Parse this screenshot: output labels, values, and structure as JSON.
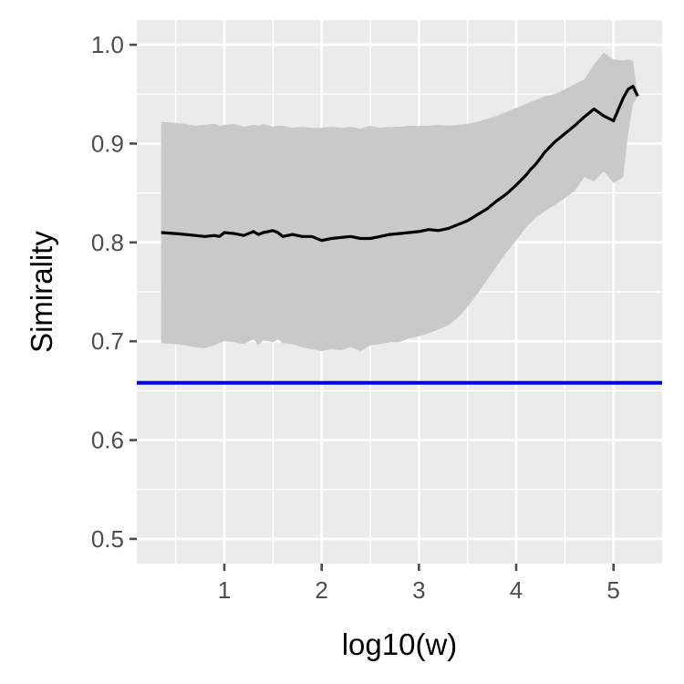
{
  "chart_data": {
    "type": "line",
    "title": "",
    "xlabel": "log10(w)",
    "ylabel": "Simirality",
    "xlim": [
      0.1,
      5.5
    ],
    "ylim": [
      0.475,
      1.025
    ],
    "x_ticks": [
      1,
      2,
      3,
      4,
      5
    ],
    "x_tick_labels": [
      "1",
      "2",
      "3",
      "4",
      "5"
    ],
    "y_ticks": [
      0.5,
      0.6,
      0.7,
      0.8,
      0.9,
      1.0
    ],
    "y_tick_labels": [
      "0.5",
      "0.6",
      "0.7",
      "0.8",
      "0.9",
      "1.0"
    ],
    "grid": true,
    "colors": {
      "panel": "#ebebeb",
      "grid": "#ffffff",
      "band": "#c9c9c9",
      "line": "#000000",
      "reference": "#0000dd",
      "ticks": "#4d4d4d"
    },
    "series": [
      {
        "x": [
          0.35,
          0.5,
          0.6,
          0.7,
          0.8,
          0.9,
          0.95,
          1.0,
          1.1,
          1.2,
          1.3,
          1.35,
          1.4,
          1.5,
          1.55,
          1.6,
          1.7,
          1.8,
          1.9,
          2.0,
          2.1,
          2.2,
          2.3,
          2.4,
          2.5,
          2.6,
          2.7,
          2.8,
          2.9,
          3.0,
          3.1,
          3.2,
          3.3,
          3.4,
          3.5,
          3.6,
          3.7,
          3.8,
          3.9,
          4.0,
          4.1,
          4.15,
          4.2,
          4.3,
          4.4,
          4.5,
          4.6,
          4.7,
          4.8,
          4.9,
          5.0,
          5.1,
          5.15,
          5.2,
          5.25
        ],
        "values": [
          0.81,
          0.809,
          0.808,
          0.807,
          0.806,
          0.807,
          0.806,
          0.81,
          0.809,
          0.807,
          0.811,
          0.808,
          0.81,
          0.812,
          0.81,
          0.806,
          0.808,
          0.806,
          0.806,
          0.802,
          0.804,
          0.805,
          0.806,
          0.804,
          0.804,
          0.806,
          0.808,
          0.809,
          0.81,
          0.811,
          0.813,
          0.812,
          0.814,
          0.818,
          0.822,
          0.828,
          0.834,
          0.842,
          0.849,
          0.858,
          0.868,
          0.874,
          0.879,
          0.892,
          0.902,
          0.91,
          0.918,
          0.927,
          0.935,
          0.928,
          0.923,
          0.946,
          0.955,
          0.958,
          0.948
        ]
      }
    ],
    "band": {
      "x": [
        0.35,
        0.5,
        0.6,
        0.7,
        0.8,
        0.9,
        0.95,
        1.0,
        1.1,
        1.2,
        1.3,
        1.35,
        1.4,
        1.5,
        1.55,
        1.6,
        1.7,
        1.8,
        1.9,
        2.0,
        2.1,
        2.2,
        2.3,
        2.4,
        2.5,
        2.6,
        2.7,
        2.8,
        2.9,
        3.0,
        3.1,
        3.2,
        3.3,
        3.4,
        3.5,
        3.6,
        3.7,
        3.8,
        3.9,
        4.0,
        4.1,
        4.15,
        4.2,
        4.3,
        4.4,
        4.5,
        4.6,
        4.7,
        4.8,
        4.9,
        5.0,
        5.1,
        5.15,
        5.2,
        5.25
      ],
      "upper": [
        0.922,
        0.921,
        0.92,
        0.918,
        0.919,
        0.92,
        0.918,
        0.919,
        0.92,
        0.917,
        0.919,
        0.918,
        0.92,
        0.917,
        0.918,
        0.918,
        0.916,
        0.917,
        0.916,
        0.916,
        0.917,
        0.916,
        0.917,
        0.915,
        0.918,
        0.916,
        0.917,
        0.917,
        0.918,
        0.918,
        0.918,
        0.919,
        0.918,
        0.919,
        0.92,
        0.922,
        0.925,
        0.928,
        0.932,
        0.936,
        0.94,
        0.942,
        0.944,
        0.948,
        0.95,
        0.955,
        0.96,
        0.965,
        0.98,
        0.992,
        0.985,
        0.984,
        0.985,
        0.984,
        0.948
      ],
      "lower": [
        0.698,
        0.697,
        0.696,
        0.694,
        0.693,
        0.696,
        0.698,
        0.7,
        0.699,
        0.697,
        0.702,
        0.696,
        0.701,
        0.699,
        0.702,
        0.698,
        0.697,
        0.694,
        0.692,
        0.69,
        0.692,
        0.691,
        0.694,
        0.69,
        0.696,
        0.697,
        0.699,
        0.699,
        0.703,
        0.705,
        0.708,
        0.712,
        0.716,
        0.724,
        0.735,
        0.748,
        0.762,
        0.776,
        0.79,
        0.802,
        0.815,
        0.82,
        0.825,
        0.832,
        0.838,
        0.845,
        0.852,
        0.866,
        0.862,
        0.872,
        0.86,
        0.866,
        0.91,
        0.94,
        0.948
      ]
    },
    "reference_line": {
      "y": 0.658
    }
  }
}
